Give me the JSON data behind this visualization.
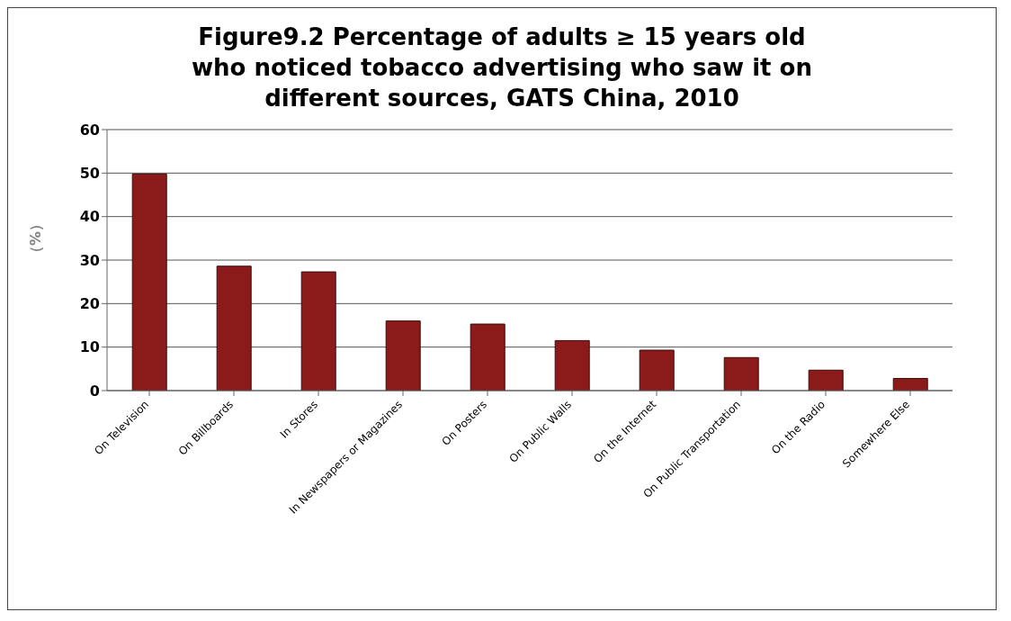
{
  "chart_data": {
    "type": "bar",
    "title": "Figure9.2 Percentage of adults ≥ 15 years old who noticed tobacco advertising who saw it on different sources, GATS China, 2010",
    "ylabel": "（%）",
    "categories": [
      "On Television",
      "On Billboards",
      "In Stores",
      "In Newspapers or Magazines",
      "On Posters",
      "On Public Walls",
      "On the Internet",
      "On Public Transportation",
      "On the Radio",
      "Somewhere Else"
    ],
    "values": [
      49.8,
      28.6,
      27.3,
      16.0,
      15.3,
      11.5,
      9.3,
      7.6,
      4.7,
      2.8
    ],
    "color": "#8b1a1a",
    "ylim": [
      0,
      60
    ],
    "yticks": [
      0,
      10,
      20,
      30,
      40,
      50,
      60
    ],
    "grid": "y"
  }
}
